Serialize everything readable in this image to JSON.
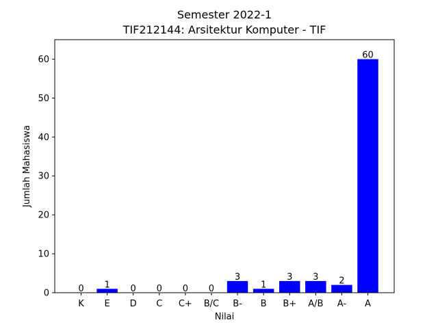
{
  "chart_data": {
    "type": "bar",
    "title": "Semester 2022-1",
    "subtitle": "TIF212144: Arsitektur Komputer - TIF",
    "xlabel": "Nilai",
    "ylabel": "Jumlah Mahasiswa",
    "categories": [
      "K",
      "E",
      "D",
      "C",
      "C+",
      "B/C",
      "B-",
      "B",
      "B+",
      "A/B",
      "A-",
      "A"
    ],
    "values": [
      0,
      1,
      0,
      0,
      0,
      0,
      3,
      1,
      3,
      3,
      2,
      60
    ],
    "ylim": [
      0,
      65
    ],
    "yticks": [
      0,
      10,
      20,
      30,
      40,
      50,
      60
    ],
    "bar_color": "#0000ff",
    "grid": false,
    "legend": "none"
  }
}
